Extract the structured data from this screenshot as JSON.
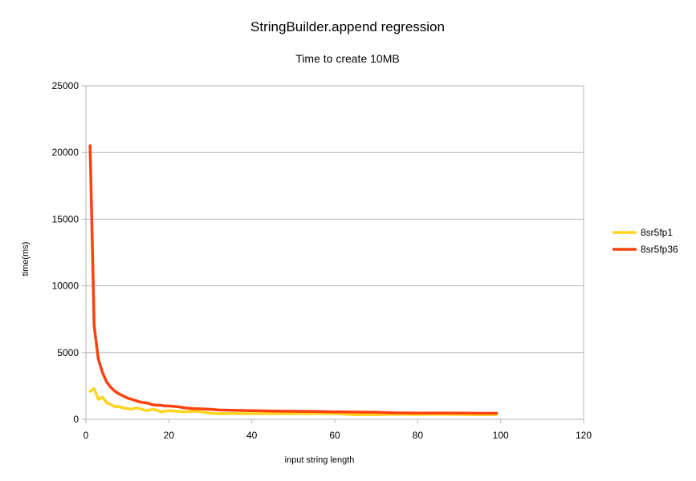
{
  "chart_data": {
    "type": "line",
    "title": "StringBuilder.append regression",
    "subtitle": "Time to create 10MB",
    "xlabel": "input string length",
    "ylabel": "time(ms)",
    "xlim": [
      0,
      120
    ],
    "ylim": [
      0,
      25000
    ],
    "xticks": [
      "0",
      "20",
      "40",
      "60",
      "80",
      "100",
      "120"
    ],
    "yticks": [
      "0",
      "5000",
      "10000",
      "15000",
      "20000",
      "25000"
    ],
    "grid": "horizontal",
    "legend_position": "right",
    "colors": {
      "8sr5fp1": "#ffd320",
      "8sr5fp36": "#ff420e"
    },
    "series": [
      {
        "name": "8sr5fp1",
        "color": "#ffd320",
        "x": [
          1,
          2,
          3,
          4,
          5,
          6,
          7,
          8,
          9,
          10,
          11,
          12,
          13,
          14,
          15,
          16,
          17,
          18,
          19,
          20,
          22,
          24,
          26,
          28,
          30,
          32,
          35,
          40,
          45,
          50,
          55,
          60,
          65,
          70,
          75,
          80,
          85,
          90,
          95,
          99
        ],
        "values": [
          2100,
          2300,
          1500,
          1650,
          1250,
          1100,
          950,
          950,
          850,
          800,
          750,
          850,
          800,
          700,
          650,
          750,
          700,
          550,
          600,
          650,
          600,
          550,
          600,
          550,
          450,
          420,
          430,
          420,
          420,
          420,
          420,
          420,
          350,
          350,
          380,
          360,
          370,
          360,
          350,
          360
        ]
      },
      {
        "name": "8sr5fp36",
        "color": "#ff420e",
        "x": [
          1,
          2,
          3,
          4,
          5,
          6,
          7,
          8,
          9,
          10,
          11,
          12,
          13,
          14,
          15,
          16,
          17,
          18,
          19,
          20,
          22,
          24,
          26,
          28,
          30,
          32,
          35,
          40,
          45,
          50,
          55,
          60,
          65,
          70,
          72,
          75,
          80,
          85,
          90,
          95,
          99
        ],
        "values": [
          20500,
          7000,
          4500,
          3500,
          2800,
          2400,
          2100,
          1900,
          1750,
          1600,
          1500,
          1400,
          1300,
          1250,
          1200,
          1100,
          1050,
          1050,
          1000,
          1000,
          950,
          850,
          800,
          780,
          750,
          700,
          680,
          650,
          620,
          600,
          580,
          560,
          540,
          520,
          500,
          480,
          470,
          460,
          460,
          450,
          450
        ]
      }
    ]
  }
}
